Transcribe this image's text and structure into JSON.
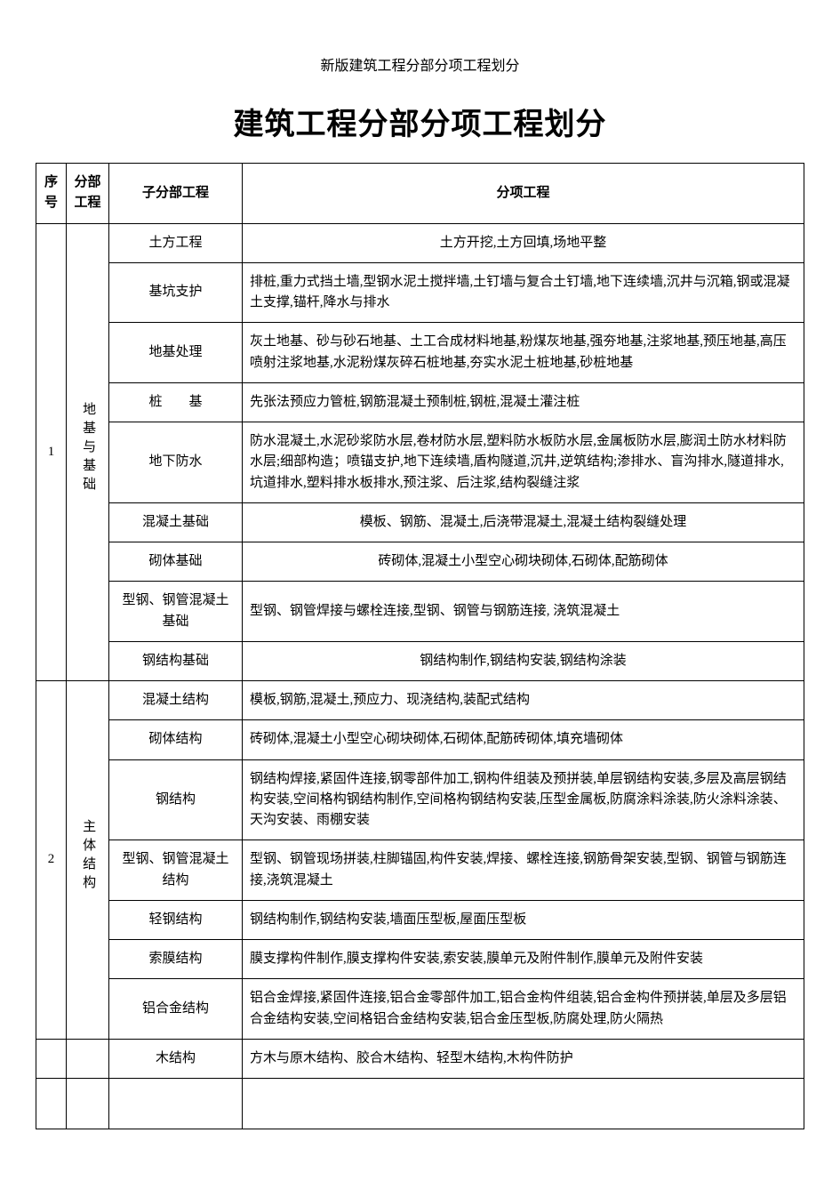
{
  "page": {
    "small_title": "新版建筑工程分部分项工程划分",
    "big_title": "建筑工程分部分项工程划分"
  },
  "header": {
    "col1": "序号",
    "col2": "分部工程",
    "col3": "子分部工程",
    "col4": "分项工程"
  },
  "sections": [
    {
      "index": "1",
      "division": "地基与基础",
      "rows": [
        {
          "sub": "土方工程",
          "items": "土方开挖,土方回填,场地平整",
          "center": true
        },
        {
          "sub": "基坑支护",
          "items": "排桩,重力式挡土墙,型钢水泥土搅拌墙,土钉墙与复合土钉墙,地下连续墙,沉井与沉箱,钢或混凝土支撑,锚杆,降水与排水"
        },
        {
          "sub": "地基处理",
          "items": "灰土地基、砂与砂石地基、土工合成材料地基,粉煤灰地基,强夯地基,注浆地基,预压地基,高压喷射注浆地基,水泥粉煤灰碎石桩地基,夯实水泥土桩地基,砂桩地基"
        },
        {
          "sub": "桩　　基",
          "items": "先张法预应力管桩,钢筋混凝土预制桩,钢桩,混凝土灌注桩"
        },
        {
          "sub": "地下防水",
          "items": "防水混凝土,水泥砂浆防水层,卷材防水层,塑料防水板防水层,金属板防水层,膨润土防水材料防水层;细部构造；喷锚支护,地下连续墙,盾构隧道,沉井,逆筑结构;渗排水、盲沟排水,隧道排水,坑道排水,塑料排水板排水,预注浆、后注浆,结构裂缝注浆"
        },
        {
          "sub": "混凝土基础",
          "items": "模板、钢筋、混凝土,后浇带混凝土,混凝土结构裂缝处理",
          "center": true
        },
        {
          "sub": "砌体基础",
          "items": "砖砌体,混凝土小型空心砌块砌体,石砌体,配筋砌体",
          "center": true
        },
        {
          "sub": "型钢、钢管混凝土基础",
          "items": "型钢、钢管焊接与螺栓连接,型钢、钢管与钢筋连接, 浇筑混凝土"
        },
        {
          "sub": "钢结构基础",
          "items": "钢结构制作,钢结构安装,钢结构涂装",
          "center": true
        }
      ]
    },
    {
      "index": "2",
      "division": "主体结构",
      "rows": [
        {
          "sub": "混凝土结构",
          "items": "模板,钢筋,混凝土,预应力、现浇结构,装配式结构"
        },
        {
          "sub": "砌体结构",
          "items": "砖砌体,混凝土小型空心砌块砌体,石砌体,配筋砖砌体,填充墙砌体"
        },
        {
          "sub": "钢结构",
          "items": "钢结构焊接,紧固件连接,钢零部件加工,钢构件组装及预拼装,单层钢结构安装,多层及高层钢结构安装,空间格构钢结构制作,空间格构钢结构安装,压型金属板,防腐涂料涂装,防火涂料涂装、天沟安装、雨棚安装"
        },
        {
          "sub": "型钢、钢管混凝土结构",
          "items": "型钢、钢管现场拼装,柱脚锚固,构件安装,焊接、螺栓连接,钢筋骨架安装,型钢、钢管与钢筋连接,浇筑混凝土"
        },
        {
          "sub": "轻钢结构",
          "items": "钢结构制作,钢结构安装,墙面压型板,屋面压型板"
        },
        {
          "sub": "索膜结构",
          "items": "膜支撑构件制作,膜支撑构件安装,索安装,膜单元及附件制作,膜单元及附件安装"
        },
        {
          "sub": "铝合金结构",
          "items": "铝合金焊接,紧固件连接,铝合金零部件加工,铝合金构件组装,铝合金构件预拼装,单层及多层铝合金结构安装,空间格铝合金结构安装,铝合金压型板,防腐处理,防火隔热"
        }
      ]
    }
  ],
  "orphan_row": {
    "sub": "木结构",
    "items": "方木与原木结构、胶合木结构、轻型木结构,木构件防护"
  }
}
